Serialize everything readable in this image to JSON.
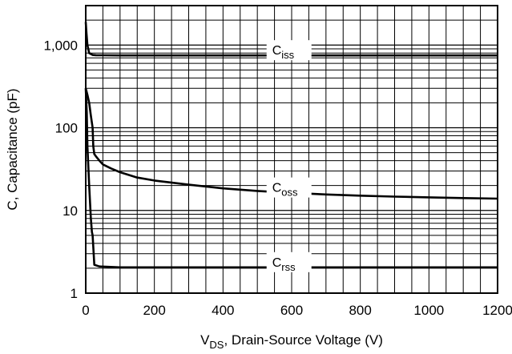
{
  "chart_data": {
    "type": "line",
    "title": "",
    "xlabel": {
      "main": "V",
      "sub": "DS",
      "rest": ", Drain-Source Voltage (V)"
    },
    "ylabel": "C, Capacitance (pF)",
    "xlim": [
      0,
      1200
    ],
    "ylim": [
      1,
      3000
    ],
    "yscale": "log",
    "grid": true,
    "x_ticks": [
      0,
      200,
      400,
      600,
      800,
      1000,
      1200
    ],
    "x_tick_labels": [
      "0",
      "200",
      "400",
      "600",
      "800",
      "1000",
      "1200"
    ],
    "y_ticks": [
      1,
      10,
      100,
      1000
    ],
    "y_tick_labels": [
      "1",
      "10",
      "100",
      "1,000"
    ],
    "series": [
      {
        "name": "Ciss",
        "label": {
          "main": "C",
          "sub": "iss"
        },
        "label_x": 590,
        "x": [
          0,
          2,
          5,
          10,
          20,
          30,
          50,
          100,
          200,
          400,
          600,
          800,
          1000,
          1200
        ],
        "values": [
          1900,
          1400,
          1000,
          800,
          760,
          755,
          752,
          750,
          750,
          750,
          750,
          750,
          750,
          750
        ]
      },
      {
        "name": "Coss",
        "label": {
          "main": "C",
          "sub": "oss"
        },
        "label_x": 590,
        "x": [
          0,
          5,
          10,
          15,
          20,
          22,
          25,
          30,
          40,
          50,
          75,
          100,
          150,
          200,
          300,
          400,
          500,
          600,
          700,
          800,
          900,
          1000,
          1100,
          1200
        ],
        "values": [
          300,
          250,
          200,
          140,
          100,
          60,
          48,
          45,
          40,
          36,
          32,
          29,
          25,
          23,
          20.5,
          18.5,
          17.2,
          16.3,
          15.6,
          15.1,
          14.7,
          14.4,
          14.1,
          13.9
        ]
      },
      {
        "name": "Crss",
        "label": {
          "main": "C",
          "sub": "rss"
        },
        "label_x": 590,
        "x": [
          0,
          3,
          5,
          10,
          15,
          18,
          20,
          25,
          40,
          100,
          200,
          400,
          600,
          800,
          1000,
          1200
        ],
        "values": [
          300,
          150,
          60,
          20,
          8,
          5.5,
          5,
          2.2,
          2.1,
          2.05,
          2.05,
          2.05,
          2.05,
          2.05,
          2.05,
          2.05
        ]
      }
    ]
  }
}
